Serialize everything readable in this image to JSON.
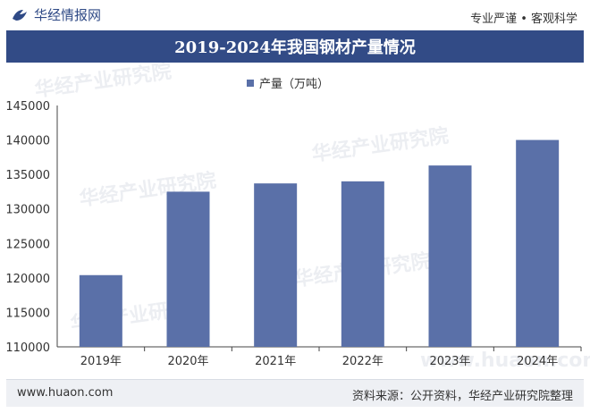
{
  "header": {
    "logo_text": "华经情报网",
    "tagline": "专业严谨 • 客观科学"
  },
  "title": "2019-2024年我国钢材产量情况",
  "watermark": "华经产业研究院",
  "watermark_url": "www.huaon.com",
  "footer": {
    "site": "www.huaon.com",
    "source": "资料来源：公开资料，华经产业研究院整理"
  },
  "colors": {
    "bar": "#5a70a8",
    "title_bg": "#324b86",
    "axis": "#444444"
  },
  "chart_data": {
    "type": "bar",
    "categories": [
      "2019年",
      "2020年",
      "2021年",
      "2022年",
      "2023年",
      "2024年"
    ],
    "series": [
      {
        "name": "产量（万吨）",
        "values": [
          120400,
          132500,
          133700,
          134000,
          136300,
          140000
        ]
      }
    ],
    "ylim": [
      110000,
      145000
    ],
    "yticks": [
      110000,
      115000,
      120000,
      125000,
      130000,
      135000,
      140000,
      145000
    ],
    "legend": "top-center",
    "grid": false
  }
}
